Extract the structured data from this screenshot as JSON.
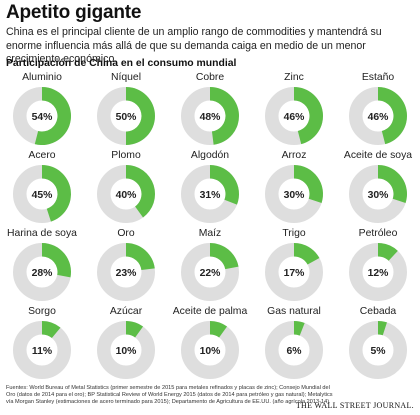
{
  "header": {
    "title": "Apetito gigante",
    "subtitle": "China es el principal cliente de un amplio rango de commodities y mantendrá su enorme influencia más allá de que su demanda caiga en medio de un menor crecimiento económico.",
    "section_title": "Participación de China en el consumo mundial"
  },
  "colors": {
    "share": "#5cbd46",
    "rest": "#dedede",
    "text": "#222222"
  },
  "chart_data": {
    "type": "pie",
    "title": "Participación de China en el consumo mundial",
    "unit": "%",
    "items": [
      {
        "label": "Aluminio",
        "value": 54
      },
      {
        "label": "Níquel",
        "value": 50
      },
      {
        "label": "Cobre",
        "value": 48
      },
      {
        "label": "Zinc",
        "value": 46
      },
      {
        "label": "Estaño",
        "value": 46
      },
      {
        "label": "Acero",
        "value": 45
      },
      {
        "label": "Plomo",
        "value": 40
      },
      {
        "label": "Algodón",
        "value": 31
      },
      {
        "label": "Arroz",
        "value": 30
      },
      {
        "label": "Aceite de soya",
        "value": 30
      },
      {
        "label": "Harina de soya",
        "value": 28
      },
      {
        "label": "Oro",
        "value": 23
      },
      {
        "label": "Maíz",
        "value": 22
      },
      {
        "label": "Trigo",
        "value": 17
      },
      {
        "label": "Petróleo",
        "value": 12
      },
      {
        "label": "Sorgo",
        "value": 11
      },
      {
        "label": "Azúcar",
        "value": 10
      },
      {
        "label": "Aceite de palma",
        "value": 10
      },
      {
        "label": "Gas natural",
        "value": 6
      },
      {
        "label": "Cebada",
        "value": 5
      }
    ]
  },
  "footer": {
    "sources": "Fuentes: World Bureau of Metal Statistics (primer semestre de 2015 para metales refinados y placas de zinc); Consejo Mundial del Oro (datos de 2014 para el oro); BP Statistical Review of World Energy 2015 (datos de 2014 para petróleo y gas natural); Metalytics vía Morgan Stanley (estimaciones de acero terminado para 2015); Departamento de Agricultura de EE.UU. (año agrícola 2013-14)",
    "brand": "THE WALL STREET JOURNAL."
  }
}
